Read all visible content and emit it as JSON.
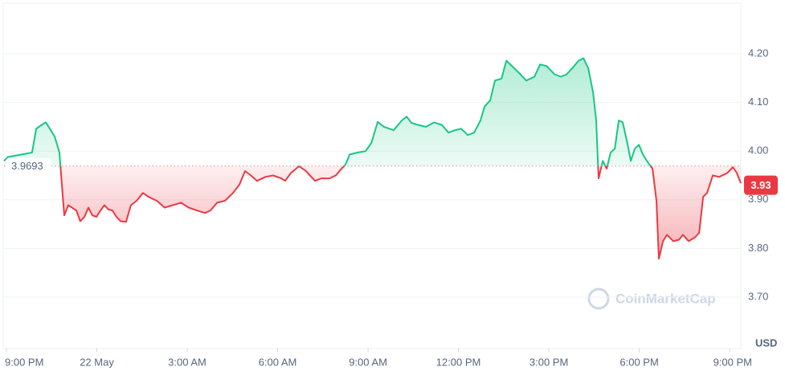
{
  "chart_data": {
    "type": "line",
    "x": [
      -0.08,
      0.05,
      0.85,
      0.99,
      1.17,
      1.31,
      1.44,
      1.6,
      1.76,
      1.84,
      1.92,
      2.05,
      2.32,
      2.45,
      2.59,
      2.72,
      2.85,
      2.99,
      3.12,
      3.25,
      3.39,
      3.52,
      3.65,
      3.79,
      3.97,
      4.13,
      4.32,
      4.53,
      4.72,
      4.99,
      5.25,
      5.52,
      5.79,
      6.05,
      6.32,
      6.59,
      6.77,
      6.99,
      7.25,
      7.52,
      7.73,
      7.92,
      8.11,
      8.32,
      8.59,
      8.85,
      9.12,
      9.25,
      9.44,
      9.71,
      9.92,
      10.24,
      10.45,
      10.72,
      10.93,
      11.12,
      11.25,
      11.39,
      11.65,
      11.92,
      12.11,
      12.32,
      12.53,
      12.85,
      13.12,
      13.28,
      13.44,
      13.65,
      13.92,
      14.19,
      14.45,
      14.67,
      14.88,
      15.09,
      15.31,
      15.52,
      15.73,
      15.87,
      16.05,
      16.21,
      16.43,
      16.59,
      16.77,
      16.99,
      17.25,
      17.52,
      17.71,
      17.92,
      18.19,
      18.4,
      18.59,
      18.77,
      18.99,
      19.15,
      19.31,
      19.47,
      19.57,
      19.65,
      19.79,
      19.92,
      20.05,
      20.19,
      20.32,
      20.45,
      20.59,
      20.72,
      20.85,
      20.99,
      21.12,
      21.25,
      21.44,
      21.57,
      21.65,
      21.79,
      21.92,
      22.13,
      22.32,
      22.45,
      22.64,
      22.85,
      22.99,
      23.12,
      23.25,
      23.44,
      23.65,
      23.92,
      24.11,
      24.24,
      24.37
    ],
    "values": [
      3.98,
      3.988,
      3.997,
      4.046,
      4.054,
      4.059,
      4.046,
      4.03,
      3.997,
      3.931,
      3.868,
      3.889,
      3.878,
      3.856,
      3.865,
      3.884,
      3.868,
      3.865,
      3.878,
      3.889,
      3.88,
      3.878,
      3.865,
      3.856,
      3.855,
      3.889,
      3.898,
      3.914,
      3.906,
      3.898,
      3.884,
      3.889,
      3.894,
      3.884,
      3.878,
      3.873,
      3.878,
      3.894,
      3.898,
      3.914,
      3.931,
      3.959,
      3.95,
      3.939,
      3.947,
      3.95,
      3.944,
      3.939,
      3.955,
      3.969,
      3.96,
      3.939,
      3.944,
      3.944,
      3.95,
      3.964,
      3.972,
      3.993,
      3.997,
      4.0,
      4.017,
      4.06,
      4.05,
      4.043,
      4.063,
      4.071,
      4.058,
      4.054,
      4.05,
      4.059,
      4.054,
      4.038,
      4.043,
      4.046,
      4.033,
      4.038,
      4.063,
      4.092,
      4.104,
      4.145,
      4.149,
      4.186,
      4.175,
      4.162,
      4.145,
      4.153,
      4.178,
      4.175,
      4.158,
      4.153,
      4.158,
      4.17,
      4.186,
      4.191,
      4.17,
      4.12,
      4.063,
      3.944,
      3.98,
      3.964,
      3.997,
      4.005,
      4.063,
      4.059,
      4.021,
      3.98,
      4.005,
      4.013,
      3.993,
      3.98,
      3.964,
      3.898,
      3.779,
      3.815,
      3.828,
      3.815,
      3.818,
      3.828,
      3.815,
      3.823,
      3.832,
      3.906,
      3.914,
      3.95,
      3.947,
      3.955,
      3.967,
      3.955,
      3.934
    ],
    "xlim": [
      -0.08,
      24.37
    ],
    "ylim": [
      3.6,
      4.3
    ],
    "xticks": [
      {
        "value": 0,
        "label": "9:00 PM"
      },
      {
        "value": 3,
        "label": "22 May"
      },
      {
        "value": 6,
        "label": "3:00 AM"
      },
      {
        "value": 9,
        "label": "6:00 AM"
      },
      {
        "value": 12,
        "label": "9:00 AM"
      },
      {
        "value": 15,
        "label": "12:00 PM"
      },
      {
        "value": 18,
        "label": "3:00 PM"
      },
      {
        "value": 21,
        "label": "6:00 PM"
      },
      {
        "value": 24,
        "label": "9:00 PM"
      }
    ],
    "yticks": [
      {
        "value": 3.7,
        "label": "3.70"
      },
      {
        "value": 3.8,
        "label": "3.80"
      },
      {
        "value": 3.9,
        "label": "3.90"
      },
      {
        "value": 4.0,
        "label": "4.00"
      },
      {
        "value": 4.1,
        "label": "4.10"
      },
      {
        "value": 4.2,
        "label": "4.20"
      }
    ],
    "baseline": 3.9693,
    "last_price": 3.93,
    "up_color": "#16c784",
    "down_color": "#ea3943",
    "grid": true,
    "currency": "USD",
    "watermark": "CoinMarketCap"
  }
}
